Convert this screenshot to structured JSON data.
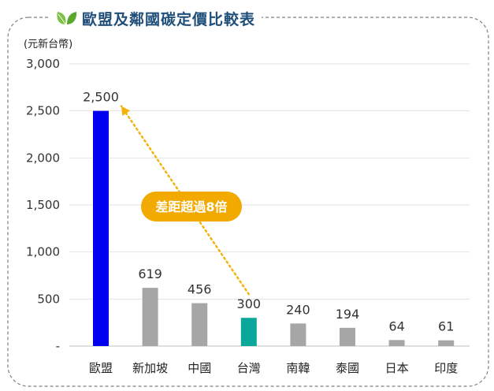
{
  "page_title": "歐盟及鄰國碳定價比較表",
  "unit_label": "(元新台幣)",
  "colors": {
    "title": "#1f4e79",
    "leaf": "#7bc142",
    "callout": "#f2a900",
    "arrow": "#f2b40c"
  },
  "icons": {
    "title_icon": "leaf-icon"
  },
  "callout_text": "差距超過8倍",
  "chart_data": {
    "type": "bar",
    "title": "歐盟及鄰國碳定價比較表",
    "ylabel": "(元新台幣)",
    "xlabel": "",
    "categories": [
      "歐盟",
      "新加坡",
      "中國",
      "台灣",
      "南韓",
      "泰國",
      "日本",
      "印度"
    ],
    "values": [
      2500,
      619,
      456,
      300,
      240,
      194,
      64,
      61
    ],
    "value_labels": [
      "2,500",
      "619",
      "456",
      "300",
      "240",
      "194",
      "64",
      "61"
    ],
    "bar_colors": [
      "#0000ee",
      "#a6a6a6",
      "#a6a6a6",
      "#0aa89a",
      "#a6a6a6",
      "#a6a6a6",
      "#a6a6a6",
      "#a6a6a6"
    ],
    "ylim": [
      0,
      3000
    ],
    "yticks": [
      0,
      500,
      1000,
      1500,
      2000,
      2500,
      3000
    ],
    "ytick_labels": [
      "-",
      "500",
      "1,000",
      "1,500",
      "2,000",
      "2,500",
      "3,000"
    ],
    "grid": true,
    "legend": "none",
    "annotation": {
      "text": "差距超過8倍",
      "from_category": "台灣",
      "to_category": "歐盟"
    }
  }
}
